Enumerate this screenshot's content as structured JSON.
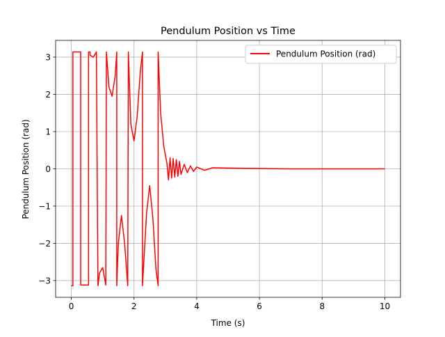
{
  "chart_data": {
    "type": "line",
    "title": "Pendulum Position vs Time",
    "xlabel": "Time (s)",
    "ylabel": "Pendulum Position (rad)",
    "xlim": [
      -0.5,
      10.5
    ],
    "ylim": [
      -3.45,
      3.45
    ],
    "grid": true,
    "legend_placement": "top-right",
    "x_ticks": [
      0,
      2,
      4,
      6,
      8,
      10
    ],
    "x_tick_labels": [
      "0",
      "2",
      "4",
      "6",
      "8",
      "10"
    ],
    "y_ticks": [
      -3,
      -2,
      -1,
      0,
      1,
      2,
      3
    ],
    "y_tick_labels": [
      "−3",
      "−2",
      "−1",
      "0",
      "1",
      "2",
      "3"
    ],
    "series": [
      {
        "name": "Pendulum Position (rad)",
        "color": "#ff0000",
        "x": [
          0.0,
          0.05,
          0.05,
          0.3,
          0.3,
          0.55,
          0.55,
          0.6,
          0.6,
          0.7,
          0.8,
          0.85,
          0.85,
          0.9,
          1.0,
          1.1,
          1.12,
          1.12,
          1.2,
          1.3,
          1.4,
          1.45,
          1.45,
          1.5,
          1.6,
          1.7,
          1.8,
          1.82,
          1.82,
          1.9,
          2.0,
          2.1,
          2.2,
          2.27,
          2.27,
          2.4,
          2.5,
          2.6,
          2.7,
          2.77,
          2.77,
          2.85,
          2.95,
          3.05,
          3.1,
          3.15,
          3.2,
          3.25,
          3.3,
          3.35,
          3.4,
          3.45,
          3.5,
          3.6,
          3.7,
          3.8,
          3.9,
          4.0,
          4.25,
          4.5,
          5.0,
          6.0,
          7.0,
          8.0,
          9.0,
          10.0
        ],
        "y": [
          -3.14,
          -3.14,
          3.14,
          3.14,
          -3.12,
          -3.12,
          3.14,
          3.14,
          3.05,
          3.0,
          3.14,
          -3.14,
          -3.14,
          -2.8,
          -2.65,
          -3.12,
          3.14,
          3.14,
          2.2,
          1.95,
          2.5,
          3.14,
          -3.14,
          -2.0,
          -1.25,
          -2.0,
          -3.14,
          3.14,
          3.14,
          1.2,
          0.75,
          1.4,
          2.6,
          3.14,
          -3.14,
          -1.2,
          -0.45,
          -1.3,
          -2.7,
          -3.14,
          3.14,
          1.5,
          0.6,
          0.15,
          -0.3,
          0.3,
          -0.25,
          0.28,
          -0.22,
          0.25,
          -0.2,
          0.2,
          -0.15,
          0.12,
          -0.1,
          0.08,
          -0.07,
          0.05,
          -0.04,
          0.03,
          0.02,
          0.01,
          0.0,
          0.0,
          0.0,
          0.0
        ]
      }
    ]
  }
}
